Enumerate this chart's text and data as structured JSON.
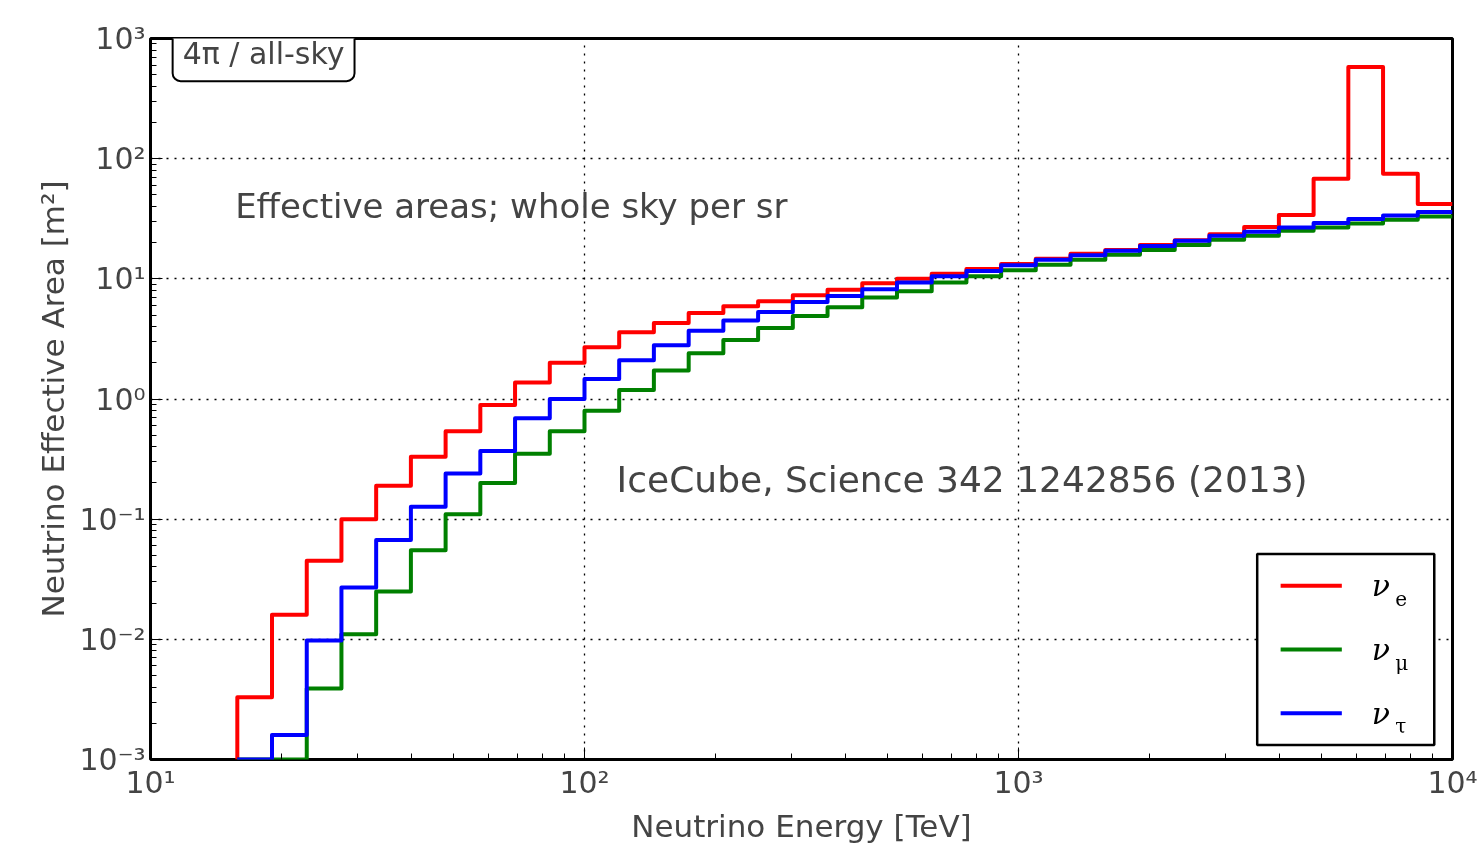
{
  "chart_data": {
    "type": "histogram",
    "xlabel": "Neutrino Energy [TeV]",
    "ylabel": "Neutrino Effective Area [m²]",
    "annotations": [
      "4π / all-sky",
      "Effective areas; whole sky per sr",
      "IceCube, Science 342 1242856 (2013)"
    ],
    "bins": [
      15.85,
      19.05,
      22.91,
      27.54,
      33.11,
      39.81,
      47.86,
      57.54,
      69.18,
      83.18,
      100,
      120.2,
      144.5,
      173.8,
      208.9,
      251.2,
      302,
      363.1,
      436.5,
      524.8,
      631,
      758.6,
      912,
      1096,
      1318,
      1585,
      1905,
      2291,
      2754,
      3311,
      3981,
      4786,
      5754,
      6918,
      8318,
      10000
    ],
    "series": [
      {
        "name": "ν$_{e}$",
        "color": "#ff0000",
        "values": [
          0.0033,
          0.016,
          0.045,
          0.1,
          0.19,
          0.33,
          0.54,
          0.89,
          1.37,
          2.0,
          2.7,
          3.6,
          4.3,
          5.2,
          5.9,
          6.5,
          7.3,
          8.1,
          9.2,
          10,
          11,
          12.1,
          13.3,
          14.7,
          16.2,
          17.4,
          19.1,
          20.9,
          23.5,
          27,
          34,
          68,
          580,
          75,
          42
        ]
      },
      {
        "name": "ν$_{μ}$",
        "color": "#008000",
        "values": [
          null,
          null,
          0.0039,
          0.011,
          0.025,
          0.055,
          0.11,
          0.2,
          0.35,
          0.54,
          0.8,
          1.19,
          1.73,
          2.4,
          3.1,
          3.9,
          4.9,
          5.8,
          7.0,
          7.9,
          9.3,
          10.5,
          11.8,
          13.1,
          14.4,
          15.9,
          17.4,
          19.1,
          21.1,
          22.8,
          25.1,
          26.7,
          28.9,
          31,
          33
        ]
      },
      {
        "name": "ν$_{τ}$",
        "color": "#0000ff",
        "values": [
          null,
          0.0016,
          0.0098,
          0.027,
          0.067,
          0.127,
          0.24,
          0.37,
          0.69,
          1.0,
          1.47,
          2.1,
          2.8,
          3.7,
          4.5,
          5.3,
          6.4,
          7.2,
          8.2,
          9.3,
          10.5,
          11.6,
          13.0,
          14.4,
          15.7,
          17.1,
          18.8,
          20.7,
          22.8,
          24.6,
          26.7,
          29.1,
          31.4,
          33.7,
          36
        ]
      }
    ],
    "log": "xy",
    "xlim": [
      10,
      10000
    ],
    "ylim": [
      0.001,
      1000
    ],
    "xticks": [
      {
        "value": 10,
        "label": "10¹"
      },
      {
        "value": 100,
        "label": "10²"
      },
      {
        "value": 1000,
        "label": "10³"
      },
      {
        "value": 10000,
        "label": "10⁴"
      }
    ],
    "yticks": [
      {
        "value": 0.001,
        "label": "10⁻³"
      },
      {
        "value": 0.01,
        "label": "10⁻²"
      },
      {
        "value": 0.1,
        "label": "10⁻¹"
      },
      {
        "value": 1,
        "label": "10⁰"
      },
      {
        "value": 10,
        "label": "10¹"
      },
      {
        "value": 100,
        "label": "10²"
      },
      {
        "value": 1000,
        "label": "10³"
      }
    ],
    "grid": true,
    "legend": "bottom right",
    "line_style": "solid",
    "marker": "none"
  }
}
